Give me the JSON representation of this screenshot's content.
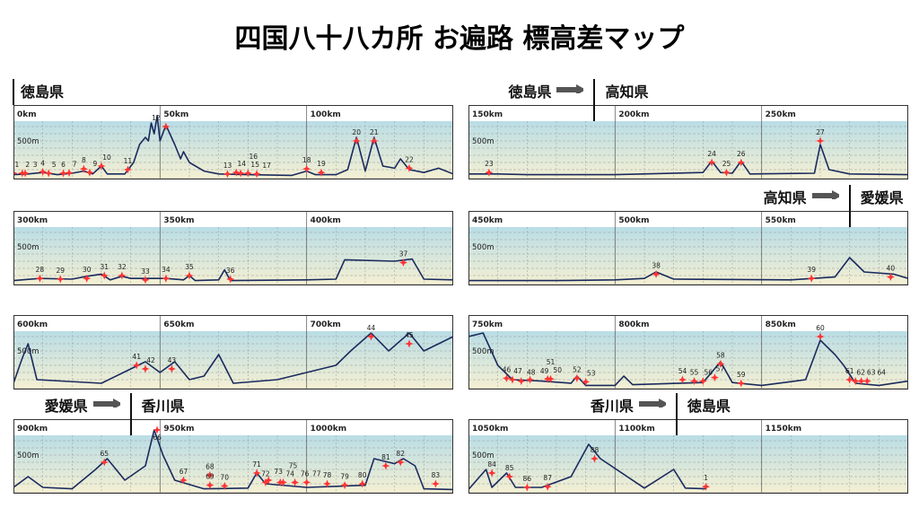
{
  "title": "四国八十八カ所 お遍路 標高差マップ",
  "colors": {
    "profile": "#1a2a5e",
    "marker": "#ff3333",
    "sky_top": "#b9dde6",
    "ground": "#f5f0d2",
    "grid": "#999999"
  },
  "chart_data": [
    {
      "type": "line",
      "xlim": [
        0,
        150
      ],
      "ylim": [
        0,
        850
      ],
      "ticks": [
        "0km",
        "50km",
        "100km"
      ],
      "y_label": "500m",
      "prefecture_from": "徳島県",
      "prefecture_to": "",
      "boundary_km": 0,
      "profile": [
        [
          0,
          30
        ],
        [
          5,
          40
        ],
        [
          10,
          60
        ],
        [
          15,
          30
        ],
        [
          20,
          50
        ],
        [
          24,
          80
        ],
        [
          27,
          40
        ],
        [
          30,
          150
        ],
        [
          32,
          40
        ],
        [
          38,
          40
        ],
        [
          41,
          200
        ],
        [
          43,
          450
        ],
        [
          45,
          550
        ],
        [
          46,
          500
        ],
        [
          47,
          750
        ],
        [
          48,
          600
        ],
        [
          49,
          850
        ],
        [
          50,
          500
        ],
        [
          52,
          720
        ],
        [
          55,
          450
        ],
        [
          57,
          250
        ],
        [
          58,
          350
        ],
        [
          60,
          200
        ],
        [
          65,
          80
        ],
        [
          70,
          40
        ],
        [
          80,
          30
        ],
        [
          95,
          20
        ],
        [
          100,
          80
        ],
        [
          103,
          30
        ],
        [
          110,
          30
        ],
        [
          114,
          100
        ],
        [
          117,
          550
        ],
        [
          120,
          80
        ],
        [
          123,
          550
        ],
        [
          126,
          150
        ],
        [
          130,
          120
        ],
        [
          132,
          250
        ],
        [
          135,
          100
        ],
        [
          140,
          60
        ],
        [
          145,
          120
        ],
        [
          150,
          40
        ]
      ],
      "temples": [
        [
          1,
          0,
          50
        ],
        [
          2,
          3,
          50
        ],
        [
          3,
          4,
          50
        ],
        [
          4,
          10,
          70
        ],
        [
          5,
          12,
          50
        ],
        [
          6,
          17,
          50
        ],
        [
          7,
          19,
          55
        ],
        [
          8,
          24,
          110
        ],
        [
          9,
          26,
          60
        ],
        [
          10,
          30,
          150
        ],
        [
          11,
          39,
          100
        ],
        [
          12,
          52,
          700
        ],
        [
          13,
          73,
          40
        ],
        [
          14,
          76,
          60
        ],
        [
          15,
          77.5,
          50
        ],
        [
          16,
          80,
          50
        ],
        [
          17,
          83,
          40
        ],
        [
          18,
          100,
          110
        ],
        [
          19,
          105,
          60
        ],
        [
          20,
          117,
          500
        ],
        [
          21,
          123,
          500
        ],
        [
          22,
          135,
          120
        ]
      ]
    },
    {
      "type": "line",
      "xlim": [
        150,
        300
      ],
      "ylim": [
        0,
        850
      ],
      "ticks": [
        "150km",
        "200km",
        "250km"
      ],
      "y_label": "500m",
      "prefecture_from": "徳島県",
      "prefecture_to": "高知県",
      "boundary_km": 193,
      "profile": [
        [
          150,
          40
        ],
        [
          160,
          40
        ],
        [
          170,
          30
        ],
        [
          200,
          30
        ],
        [
          230,
          60
        ],
        [
          233,
          220
        ],
        [
          236,
          60
        ],
        [
          240,
          50
        ],
        [
          243,
          220
        ],
        [
          246,
          40
        ],
        [
          268,
          50
        ],
        [
          270,
          450
        ],
        [
          273,
          100
        ],
        [
          280,
          40
        ],
        [
          300,
          30
        ]
      ],
      "temples": [
        [
          23,
          157,
          60
        ],
        [
          24,
          233,
          200
        ],
        [
          25,
          238,
          60
        ],
        [
          26,
          243,
          200
        ],
        [
          27,
          270,
          500
        ]
      ]
    },
    {
      "type": "line",
      "xlim": [
        300,
        450
      ],
      "ylim": [
        0,
        850
      ],
      "ticks": [
        "300km",
        "350km",
        "400km"
      ],
      "y_label": "500m",
      "prefecture_from": "",
      "prefecture_to": "",
      "boundary_km": null,
      "profile": [
        [
          300,
          30
        ],
        [
          309,
          60
        ],
        [
          320,
          50
        ],
        [
          325,
          90
        ],
        [
          330,
          120
        ],
        [
          333,
          40
        ],
        [
          337,
          90
        ],
        [
          340,
          60
        ],
        [
          352,
          60
        ],
        [
          358,
          40
        ],
        [
          360,
          100
        ],
        [
          362,
          30
        ],
        [
          370,
          40
        ],
        [
          372,
          180
        ],
        [
          374,
          30
        ],
        [
          400,
          40
        ],
        [
          410,
          50
        ],
        [
          413,
          320
        ],
        [
          430,
          300
        ],
        [
          436,
          330
        ],
        [
          440,
          50
        ],
        [
          450,
          40
        ]
      ],
      "temples": [
        [
          28,
          309,
          60
        ],
        [
          29,
          316,
          50
        ],
        [
          30,
          325,
          60
        ],
        [
          31,
          331,
          100
        ],
        [
          32,
          337,
          100
        ],
        [
          33,
          345,
          40
        ],
        [
          34,
          352,
          60
        ],
        [
          35,
          360,
          100
        ],
        [
          36,
          374,
          50
        ],
        [
          37,
          433,
          280
        ]
      ]
    },
    {
      "type": "line",
      "xlim": [
        450,
        600
      ],
      "ylim": [
        0,
        850
      ],
      "ticks": [
        "450km",
        "500km",
        "550km"
      ],
      "y_label": "500m",
      "prefecture_from": "高知県",
      "prefecture_to": "愛媛県",
      "boundary_km": 580,
      "profile": [
        [
          450,
          30
        ],
        [
          480,
          30
        ],
        [
          500,
          40
        ],
        [
          510,
          60
        ],
        [
          514,
          150
        ],
        [
          520,
          50
        ],
        [
          560,
          40
        ],
        [
          575,
          80
        ],
        [
          580,
          350
        ],
        [
          585,
          150
        ],
        [
          595,
          120
        ],
        [
          600,
          60
        ]
      ],
      "temples": [
        [
          38,
          514,
          120
        ],
        [
          39,
          567,
          60
        ],
        [
          40,
          594,
          80
        ]
      ]
    },
    {
      "type": "line",
      "xlim": [
        600,
        750
      ],
      "ylim": [
        0,
        850
      ],
      "ticks": [
        "600km",
        "650km",
        "700km"
      ],
      "y_label": "500m",
      "prefecture_from": "",
      "prefecture_to": "",
      "boundary_km": null,
      "profile": [
        [
          600,
          50
        ],
        [
          603,
          400
        ],
        [
          605,
          600
        ],
        [
          608,
          100
        ],
        [
          630,
          50
        ],
        [
          640,
          250
        ],
        [
          645,
          350
        ],
        [
          650,
          200
        ],
        [
          655,
          350
        ],
        [
          660,
          100
        ],
        [
          665,
          150
        ],
        [
          670,
          450
        ],
        [
          675,
          50
        ],
        [
          690,
          100
        ],
        [
          710,
          300
        ],
        [
          715,
          500
        ],
        [
          722,
          750
        ],
        [
          728,
          500
        ],
        [
          735,
          750
        ],
        [
          740,
          500
        ],
        [
          745,
          600
        ],
        [
          750,
          700
        ]
      ],
      "temples": [
        [
          41,
          642,
          300
        ],
        [
          42,
          645,
          250
        ],
        [
          43,
          654,
          250
        ],
        [
          44,
          722,
          700
        ],
        [
          45,
          735,
          600
        ]
      ]
    },
    {
      "type": "line",
      "xlim": [
        750,
        900
      ],
      "ylim": [
        0,
        850
      ],
      "ticks": [
        "750km",
        "800km",
        "850km"
      ],
      "y_label": "500m",
      "prefecture_from": "",
      "prefecture_to": "",
      "boundary_km": null,
      "profile": [
        [
          750,
          700
        ],
        [
          755,
          750
        ],
        [
          760,
          300
        ],
        [
          765,
          100
        ],
        [
          775,
          80
        ],
        [
          785,
          50
        ],
        [
          787,
          150
        ],
        [
          790,
          20
        ],
        [
          800,
          20
        ],
        [
          803,
          150
        ],
        [
          806,
          30
        ],
        [
          830,
          60
        ],
        [
          836,
          350
        ],
        [
          840,
          60
        ],
        [
          850,
          20
        ],
        [
          865,
          100
        ],
        [
          870,
          650
        ],
        [
          875,
          450
        ],
        [
          878,
          300
        ],
        [
          882,
          50
        ],
        [
          890,
          20
        ],
        [
          900,
          80
        ]
      ],
      "temples": [
        [
          46,
          763,
          120
        ],
        [
          47,
          765,
          100
        ],
        [
          48,
          768,
          80
        ],
        [
          49,
          771,
          100
        ],
        [
          50,
          777,
          110
        ],
        [
          51,
          778,
          110
        ],
        [
          52,
          787,
          120
        ],
        [
          53,
          790,
          70
        ],
        [
          54,
          823,
          100
        ],
        [
          55,
          827,
          80
        ],
        [
          56,
          830,
          80
        ],
        [
          57,
          834,
          130
        ],
        [
          58,
          836,
          320
        ],
        [
          59,
          843,
          50
        ],
        [
          60,
          870,
          700
        ],
        [
          61,
          880,
          100
        ],
        [
          62,
          882,
          80
        ],
        [
          63,
          884,
          80
        ],
        [
          64,
          886,
          80
        ]
      ]
    },
    {
      "type": "line",
      "xlim": [
        900,
        1050
      ],
      "ylim": [
        0,
        850
      ],
      "ticks": [
        "900km",
        "950km",
        "1000km"
      ],
      "y_label": "500m",
      "prefecture_from": "愛媛県",
      "prefecture_to": "香川県",
      "boundary_km": 940,
      "profile": [
        [
          900,
          50
        ],
        [
          905,
          200
        ],
        [
          910,
          50
        ],
        [
          920,
          30
        ],
        [
          928,
          300
        ],
        [
          932,
          450
        ],
        [
          938,
          150
        ],
        [
          945,
          350
        ],
        [
          948,
          850
        ],
        [
          951,
          500
        ],
        [
          955,
          150
        ],
        [
          965,
          30
        ],
        [
          980,
          40
        ],
        [
          983,
          250
        ],
        [
          986,
          100
        ],
        [
          1000,
          50
        ],
        [
          1020,
          80
        ],
        [
          1023,
          450
        ],
        [
          1030,
          380
        ],
        [
          1033,
          450
        ],
        [
          1037,
          350
        ],
        [
          1040,
          30
        ],
        [
          1050,
          20
        ]
      ],
      "temples": [
        [
          65,
          931,
          400
        ],
        [
          66,
          949,
          850
        ],
        [
          67,
          958,
          150
        ],
        [
          68,
          967,
          220
        ],
        [
          69,
          967,
          80
        ],
        [
          70,
          972,
          70
        ],
        [
          71,
          983,
          250
        ],
        [
          72,
          986,
          120
        ],
        [
          73,
          987,
          150
        ],
        [
          74,
          991,
          120
        ],
        [
          75,
          992,
          120
        ],
        [
          76,
          996,
          120
        ],
        [
          77,
          1000,
          120
        ],
        [
          78,
          1007,
          100
        ],
        [
          79,
          1013,
          80
        ],
        [
          80,
          1019,
          100
        ],
        [
          81,
          1027,
          350
        ],
        [
          82,
          1032,
          400
        ],
        [
          83,
          1044,
          100
        ]
      ]
    },
    {
      "type": "line",
      "xlim": [
        1050,
        1200
      ],
      "ylim": [
        0,
        850
      ],
      "ticks": [
        "1050km",
        "1100km",
        "1150km"
      ],
      "y_label": "500m",
      "prefecture_from": "香川県",
      "prefecture_to": "徳島県",
      "boundary_km": 1121,
      "profile": [
        [
          1050,
          20
        ],
        [
          1056,
          300
        ],
        [
          1058,
          50
        ],
        [
          1063,
          250
        ],
        [
          1066,
          50
        ],
        [
          1075,
          50
        ],
        [
          1085,
          200
        ],
        [
          1091,
          650
        ],
        [
          1095,
          450
        ],
        [
          1110,
          40
        ],
        [
          1120,
          300
        ],
        [
          1124,
          40
        ],
        [
          1131,
          30
        ]
      ],
      "temples": [
        [
          84,
          1058,
          250
        ],
        [
          85,
          1064,
          200
        ],
        [
          86,
          1070,
          50
        ],
        [
          87,
          1077,
          60
        ],
        [
          88,
          1093,
          450
        ],
        [
          1,
          1131,
          60
        ]
      ]
    }
  ]
}
